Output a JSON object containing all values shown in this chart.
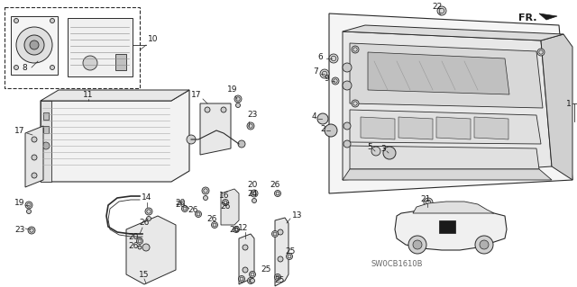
{
  "bg_color": "#f0f0f0",
  "line_color": "#2a2a2a",
  "text_color": "#1a1a1a",
  "watermark": "SW0CB1610B",
  "fr_label": "FR.",
  "fig_width": 6.4,
  "fig_height": 3.19,
  "dpi": 100
}
